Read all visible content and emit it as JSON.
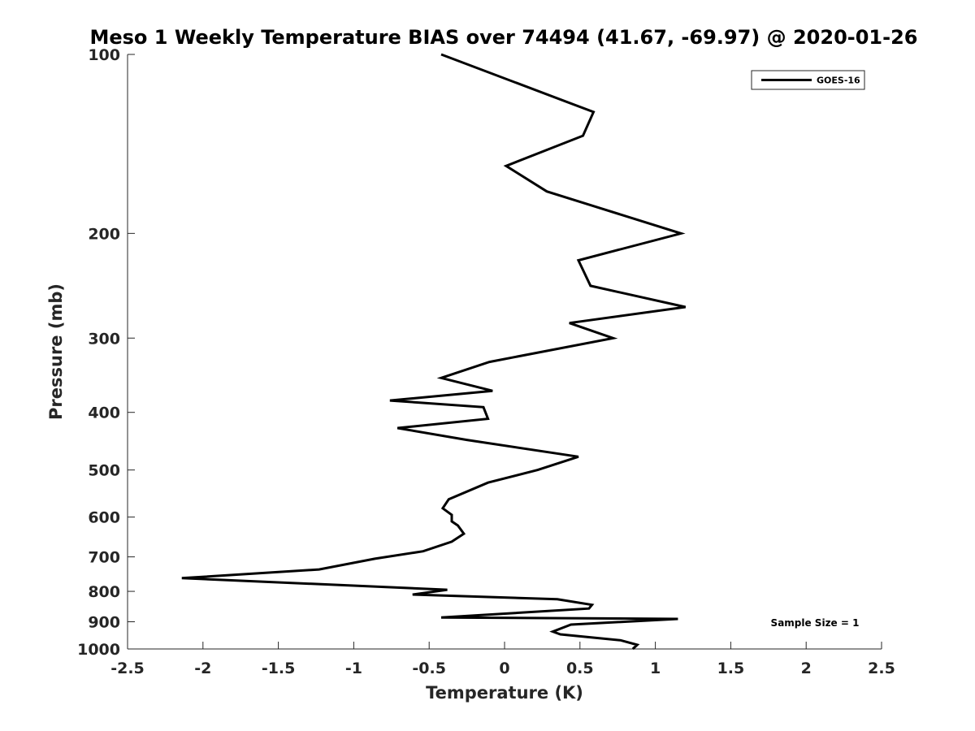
{
  "chart_data": {
    "type": "line",
    "title": "Meso 1 Weekly Temperature BIAS over 74494 (41.67, -69.97) @ 2020-01-26",
    "xlabel": "Temperature (K)",
    "ylabel": "Pressure (mb)",
    "xlim": [
      -2.5,
      2.5
    ],
    "ylim": [
      100,
      1000
    ],
    "yscale": "log",
    "yreversed": true,
    "xticks": [
      -2.5,
      -2,
      -1.5,
      -1,
      -0.5,
      0,
      0.5,
      1,
      1.5,
      2,
      2.5
    ],
    "xtick_labels": [
      "-2.5",
      "-2",
      "-1.5",
      "-1",
      "-0.5",
      "0",
      "0.5",
      "1",
      "1.5",
      "2",
      "2.5"
    ],
    "yticks": [
      100,
      200,
      300,
      400,
      500,
      600,
      700,
      800,
      900,
      1000
    ],
    "ytick_labels": [
      "100",
      "200",
      "300",
      "400",
      "500",
      "600",
      "700",
      "800",
      "900",
      "1000"
    ],
    "grid": false,
    "legend_position": "top-right",
    "annotation": "Sample Size = 1",
    "series": [
      {
        "name": "GOES-16",
        "color": "#000000",
        "temperature": [
          -0.42,
          0.59,
          0.52,
          0.01,
          0.28,
          1.17,
          0.49,
          0.57,
          1.2,
          0.43,
          0.72,
          -0.1,
          -0.42,
          -0.08,
          -0.76,
          -0.14,
          -0.11,
          -0.71,
          -0.25,
          0.49,
          0.22,
          -0.11,
          -0.37,
          -0.41,
          -0.35,
          -0.35,
          -0.31,
          -0.27,
          -0.35,
          -0.54,
          -0.86,
          -1.23,
          -2.14,
          -0.38,
          -0.61,
          0.35,
          0.58,
          0.56,
          -0.42,
          1.15,
          0.44,
          0.32,
          0.37,
          0.77,
          0.88,
          0.85
        ],
        "pressure": [
          100,
          125,
          137,
          154,
          170,
          200,
          222,
          245,
          266,
          283,
          300,
          329,
          350,
          368,
          382,
          392,
          410,
          425,
          445,
          475,
          500,
          525,
          560,
          580,
          595,
          610,
          620,
          640,
          660,
          685,
          705,
          735,
          760,
          795,
          810,
          825,
          843,
          855,
          885,
          890,
          910,
          935,
          945,
          967,
          984,
          1000
        ]
      }
    ]
  }
}
